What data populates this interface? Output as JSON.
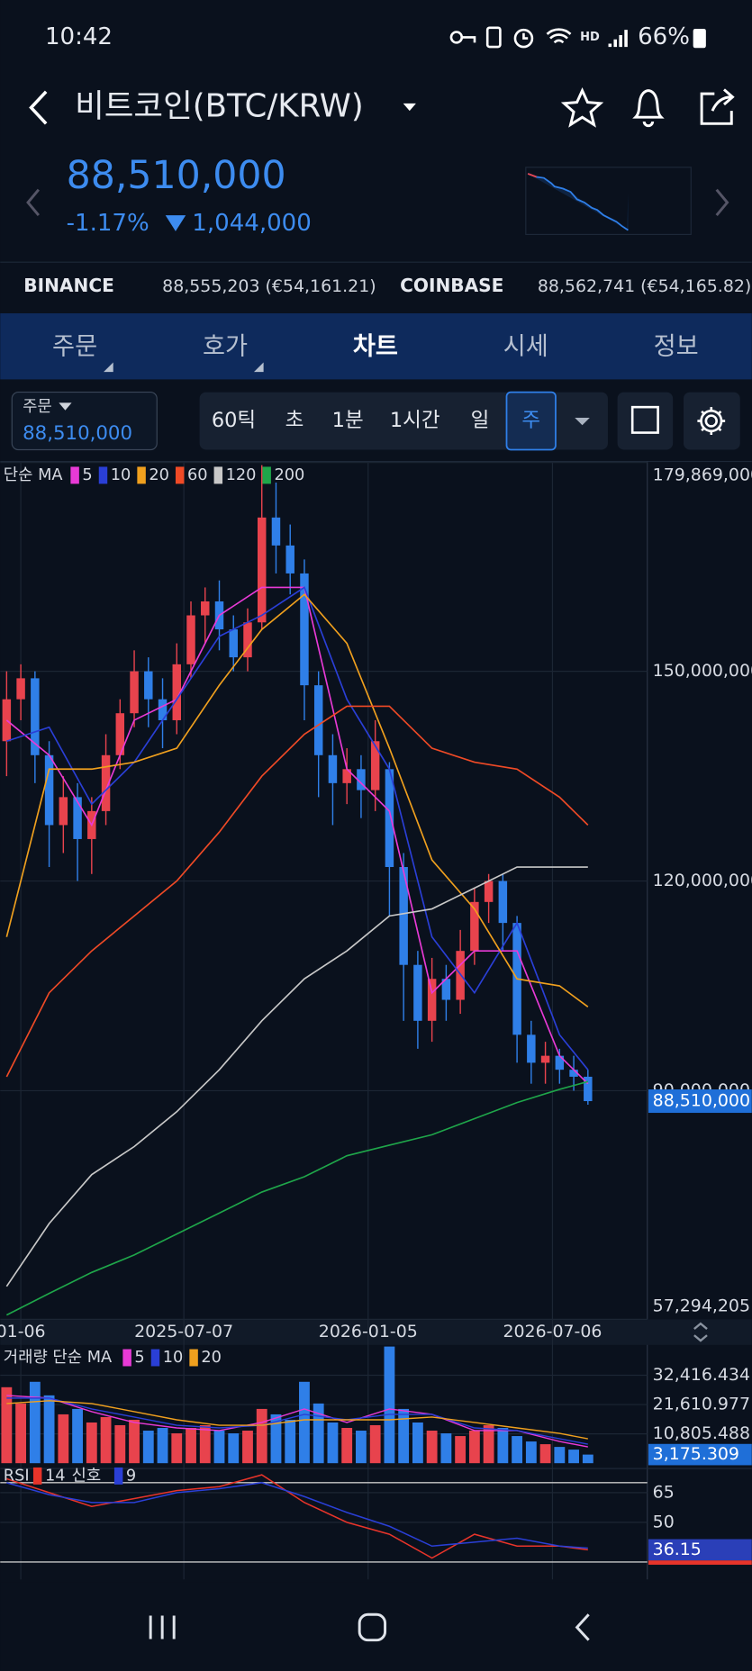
{
  "status_bar": {
    "time": "10:42",
    "battery": "66%"
  },
  "header": {
    "title": "비트코인(BTC/KRW)"
  },
  "price": {
    "value": "88,510,000",
    "change_rate": "-1.17%",
    "change": "1,044,000"
  },
  "exchanges": [
    {
      "name": "BINANCE",
      "price": "88,555,203 (€54,161.21)"
    },
    {
      "name": "COINBASE",
      "price": "88,562,741 (€54,165.82)"
    }
  ],
  "tabs": [
    "주문",
    "호가",
    "차트",
    "시세",
    "정보"
  ],
  "order_box": {
    "label": "주문",
    "price": "88,510,000"
  },
  "intervals": [
    "60틱",
    "초",
    "1분",
    "1시간",
    "일",
    "주"
  ],
  "chart_data": [
    {
      "type": "candlestick",
      "legend_label": "단순 MA",
      "up_color": "#e8434d",
      "down_color": "#2f7fe8",
      "open": [
        140000000,
        146000000,
        149000000,
        138000000,
        128000000,
        132000000,
        126000000,
        130000000,
        138000000,
        144000000,
        150000000,
        146000000,
        143000000,
        151000000,
        158000000,
        160000000,
        156000000,
        152000000,
        157000000,
        172000000,
        168000000,
        164000000,
        148000000,
        138000000,
        134000000,
        136000000,
        133000000,
        136000000,
        122000000,
        108000000,
        100000000,
        106000000,
        103000000,
        110000000,
        117000000,
        120000000,
        114000000,
        98000000,
        94000000,
        95000000,
        93000000,
        92000000
      ],
      "high": [
        150000000,
        151000000,
        150000000,
        140000000,
        135000000,
        134000000,
        132000000,
        141000000,
        146000000,
        153000000,
        152000000,
        149000000,
        154000000,
        160000000,
        162000000,
        163000000,
        158000000,
        159000000,
        179500000,
        177000000,
        171000000,
        166000000,
        150000000,
        141000000,
        139000000,
        138000000,
        143000000,
        137000000,
        124000000,
        110000000,
        109000000,
        108000000,
        113000000,
        119000000,
        121000000,
        121000000,
        115000000,
        100000000,
        97000000,
        96000000,
        95000000,
        93000000
      ],
      "low": [
        135000000,
        143000000,
        134000000,
        122000000,
        124000000,
        120000000,
        121000000,
        128000000,
        136000000,
        142000000,
        142000000,
        139000000,
        141000000,
        149000000,
        154000000,
        153000000,
        150000000,
        150000000,
        156000000,
        164000000,
        161000000,
        143000000,
        132000000,
        128000000,
        131000000,
        129000000,
        130000000,
        115000000,
        100000000,
        96000000,
        97000000,
        100000000,
        101000000,
        108000000,
        114000000,
        110000000,
        94000000,
        91000000,
        91000000,
        91000000,
        90000000,
        88000000
      ],
      "close": [
        146000000,
        149000000,
        138000000,
        128000000,
        132000000,
        126000000,
        130000000,
        138000000,
        144000000,
        150000000,
        146000000,
        143000000,
        151000000,
        158000000,
        160000000,
        156000000,
        152000000,
        157000000,
        172000000,
        168000000,
        164000000,
        148000000,
        138000000,
        134000000,
        136000000,
        133000000,
        140000000,
        122000000,
        108000000,
        100000000,
        106000000,
        103000000,
        110000000,
        117000000,
        120000000,
        114000000,
        98000000,
        94000000,
        95000000,
        93000000,
        92000000,
        88510000
      ],
      "series": [
        {
          "name": "5",
          "color": "#e83ad6",
          "x": [
            0,
            3,
            6,
            9,
            12,
            15,
            18,
            21,
            24,
            27,
            30,
            33,
            36,
            39,
            41
          ],
          "values": [
            143000000,
            138000000,
            128000000,
            143000000,
            146000000,
            158000000,
            162000000,
            162000000,
            136000000,
            130000000,
            104000000,
            110000000,
            110000000,
            95000000,
            91000000
          ]
        },
        {
          "name": "10",
          "color": "#2a3fd6",
          "x": [
            0,
            3,
            6,
            9,
            12,
            15,
            18,
            21,
            24,
            27,
            30,
            33,
            36,
            39,
            41
          ],
          "values": [
            140000000,
            142000000,
            131000000,
            137000000,
            146000000,
            155000000,
            158000000,
            162000000,
            146000000,
            136000000,
            112000000,
            104000000,
            114000000,
            98000000,
            93000000
          ]
        },
        {
          "name": "20",
          "color": "#f0a01e",
          "x": [
            0,
            3,
            6,
            9,
            12,
            15,
            18,
            21,
            24,
            27,
            30,
            33,
            36,
            39,
            41
          ],
          "values": [
            112000000,
            136000000,
            136000000,
            137000000,
            139000000,
            148000000,
            156000000,
            161000000,
            154000000,
            139000000,
            123000000,
            116000000,
            106000000,
            105000000,
            102000000
          ]
        },
        {
          "name": "60",
          "color": "#ef4a26",
          "x": [
            0,
            3,
            6,
            9,
            12,
            15,
            18,
            21,
            24,
            27,
            30,
            33,
            36,
            39,
            41
          ],
          "values": [
            92000000,
            104000000,
            110000000,
            115000000,
            120000000,
            127000000,
            135000000,
            141000000,
            145000000,
            145000000,
            139000000,
            137000000,
            136000000,
            132000000,
            128000000
          ]
        },
        {
          "name": "120",
          "color": "#c8c8c8",
          "x": [
            0,
            3,
            6,
            9,
            12,
            15,
            18,
            21,
            24,
            27,
            30,
            33,
            36,
            39,
            41
          ],
          "values": [
            62000000,
            71000000,
            78000000,
            82000000,
            87000000,
            93000000,
            100000000,
            106000000,
            110000000,
            115000000,
            116000000,
            119000000,
            122000000,
            122000000,
            122000000
          ]
        },
        {
          "name": "200",
          "color": "#1fa64a",
          "x": [
            0,
            3,
            6,
            9,
            12,
            15,
            18,
            21,
            24,
            27,
            30,
            33,
            36,
            39,
            41
          ],
          "values": [
            57900000,
            61000000,
            64000000,
            66500000,
            69500000,
            72500000,
            75500000,
            77700000,
            80700000,
            82200000,
            83700000,
            86000000,
            88300000,
            90200000,
            91300000
          ]
        }
      ],
      "ylim": [
        57294205,
        179869000
      ],
      "yticks": [
        {
          "value": 179869000,
          "label": "179,869,000"
        },
        {
          "value": 150000000,
          "label": "150,000,000"
        },
        {
          "value": 120000000,
          "label": "120,000,000"
        },
        {
          "value": 90000000,
          "label": "90,000,000"
        },
        {
          "value": 57294205,
          "label": "57,294,205"
        }
      ],
      "xticks": [
        {
          "value": 1,
          "label": "01-06"
        },
        {
          "value": 12.5,
          "label": "2025-07-07"
        },
        {
          "value": 25.5,
          "label": "2026-01-05"
        },
        {
          "value": 38.5,
          "label": "2026-07-06"
        }
      ],
      "last_label": "88,510,000"
    },
    {
      "type": "bar",
      "legend_label": "거래량 단순 MA",
      "values": [
        28000,
        22000,
        30000,
        25000,
        18000,
        20000,
        15000,
        17000,
        14000,
        16000,
        12000,
        13000,
        11000,
        13000,
        14000,
        12000,
        11000,
        12000,
        20000,
        18000,
        16000,
        30000,
        22000,
        15000,
        13000,
        12000,
        14000,
        43000,
        20000,
        15000,
        12000,
        11000,
        10000,
        12000,
        14000,
        13000,
        10000,
        8000,
        7000,
        6000,
        5000,
        3175.309
      ],
      "series": [
        {
          "name": "5",
          "color": "#e83ad6",
          "x": [
            0,
            3,
            6,
            9,
            12,
            15,
            18,
            21,
            24,
            27,
            30,
            33,
            36,
            39,
            41
          ],
          "values": [
            25000,
            24000,
            19000,
            15000,
            13000,
            12000,
            15000,
            20000,
            15000,
            20000,
            18000,
            12000,
            12000,
            8000,
            6000
          ]
        },
        {
          "name": "10",
          "color": "#2a3fd6",
          "x": [
            0,
            3,
            6,
            9,
            12,
            15,
            18,
            21,
            24,
            27,
            30,
            33,
            36,
            39,
            41
          ],
          "values": [
            24000,
            24000,
            20000,
            17000,
            14000,
            13000,
            14000,
            18000,
            16000,
            18000,
            18000,
            13000,
            12000,
            9000,
            7000
          ]
        },
        {
          "name": "20",
          "color": "#f0a01e",
          "x": [
            0,
            3,
            6,
            9,
            12,
            15,
            18,
            21,
            24,
            27,
            30,
            33,
            36,
            39,
            41
          ],
          "values": [
            22000,
            23000,
            22000,
            19000,
            16000,
            14000,
            14000,
            16000,
            16000,
            16000,
            17000,
            15000,
            13000,
            11000,
            9000
          ]
        }
      ],
      "ylim": [
        0,
        43600
      ],
      "yticks": [
        {
          "value": 32416.434,
          "label": "32,416.434"
        },
        {
          "value": 21610.977,
          "label": "21,610.977"
        },
        {
          "value": 10805.488,
          "label": "10,805.488"
        }
      ],
      "last_label": "3,175.309"
    },
    {
      "type": "line",
      "title": "RSI",
      "signal_label": "신호",
      "series": [
        {
          "name": "14",
          "color": "#e8342a",
          "x": [
            0,
            3,
            6,
            9,
            12,
            15,
            18,
            21,
            24,
            27,
            30,
            33,
            36,
            39,
            41
          ],
          "values": [
            72,
            65,
            58,
            62,
            66,
            68,
            74,
            60,
            50,
            44,
            32,
            44,
            38,
            38,
            36.15
          ]
        },
        {
          "name": "9",
          "color": "#2a3fd6",
          "x": [
            0,
            3,
            6,
            9,
            12,
            15,
            18,
            21,
            24,
            27,
            30,
            33,
            36,
            39,
            41
          ],
          "values": [
            70,
            64,
            60,
            60,
            65,
            67,
            70,
            63,
            55,
            48,
            38,
            40,
            42,
            38,
            37
          ]
        }
      ],
      "levels": [
        70,
        30
      ],
      "ylim": [
        25,
        75
      ],
      "yticks": [
        65,
        50
      ]
    }
  ]
}
